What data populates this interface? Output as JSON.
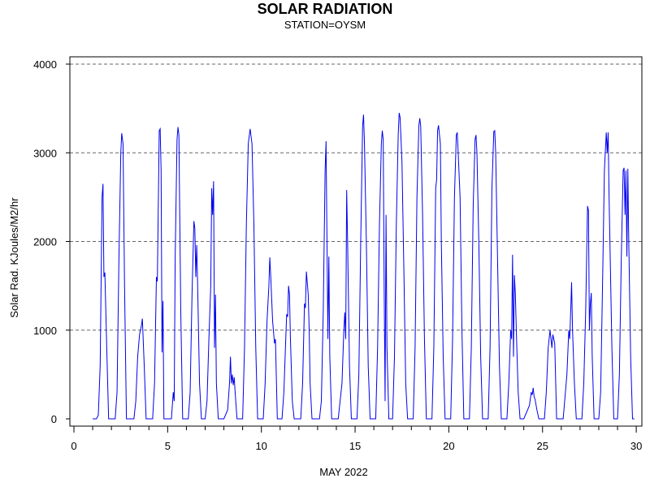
{
  "chart_data": {
    "type": "line",
    "title": "SOLAR RADIATION",
    "subtitle": "STATION=OYSM",
    "xlabel": "MAY 2022",
    "ylabel": "Solar Rad. KJoules/M2/hr",
    "xlim": [
      0,
      30
    ],
    "ylim": [
      0,
      4000
    ],
    "x_ticks": [
      0,
      5,
      10,
      15,
      20,
      25,
      30
    ],
    "y_ticks": [
      0,
      1000,
      2000,
      3000,
      4000
    ],
    "grid": "horizontal dashed",
    "line_color": "#0000ee",
    "series": [
      {
        "points": [
          [
            1.0,
            0
          ],
          [
            1.2,
            0
          ],
          [
            1.3,
            40
          ],
          [
            1.4,
            600
          ],
          [
            1.5,
            2500
          ],
          [
            1.55,
            2650
          ],
          [
            1.6,
            1600
          ],
          [
            1.65,
            1650
          ],
          [
            1.75,
            800
          ],
          [
            1.85,
            0
          ],
          [
            2.2,
            0
          ],
          [
            2.3,
            300
          ],
          [
            2.4,
            1800
          ],
          [
            2.5,
            3000
          ],
          [
            2.55,
            3220
          ],
          [
            2.62,
            3100
          ],
          [
            2.7,
            1500
          ],
          [
            2.8,
            0
          ],
          [
            3.2,
            0
          ],
          [
            3.3,
            200
          ],
          [
            3.4,
            700
          ],
          [
            3.5,
            950
          ],
          [
            3.6,
            1050
          ],
          [
            3.65,
            1130
          ],
          [
            3.75,
            600
          ],
          [
            3.85,
            0
          ],
          [
            4.2,
            0
          ],
          [
            4.3,
            400
          ],
          [
            4.4,
            1600
          ],
          [
            4.45,
            1550
          ],
          [
            4.55,
            3250
          ],
          [
            4.6,
            3270
          ],
          [
            4.65,
            2800
          ],
          [
            4.7,
            750
          ],
          [
            4.75,
            1330
          ],
          [
            4.8,
            0
          ],
          [
            5.2,
            0
          ],
          [
            5.3,
            300
          ],
          [
            5.35,
            200
          ],
          [
            5.4,
            1800
          ],
          [
            5.5,
            3150
          ],
          [
            5.55,
            3290
          ],
          [
            5.6,
            3200
          ],
          [
            5.7,
            1200
          ],
          [
            5.8,
            0
          ],
          [
            6.1,
            0
          ],
          [
            6.2,
            300
          ],
          [
            6.3,
            1400
          ],
          [
            6.4,
            2230
          ],
          [
            6.45,
            2150
          ],
          [
            6.5,
            1600
          ],
          [
            6.55,
            1960
          ],
          [
            6.6,
            1500
          ],
          [
            6.7,
            400
          ],
          [
            6.8,
            0
          ],
          [
            7.0,
            0
          ],
          [
            7.1,
            200
          ],
          [
            7.2,
            900
          ],
          [
            7.3,
            1500
          ],
          [
            7.35,
            2600
          ],
          [
            7.4,
            2300
          ],
          [
            7.45,
            2680
          ],
          [
            7.5,
            800
          ],
          [
            7.55,
            1400
          ],
          [
            7.6,
            400
          ],
          [
            7.7,
            0
          ],
          [
            8.0,
            0
          ],
          [
            8.2,
            100
          ],
          [
            8.3,
            400
          ],
          [
            8.35,
            700
          ],
          [
            8.4,
            400
          ],
          [
            8.45,
            500
          ],
          [
            8.5,
            380
          ],
          [
            8.55,
            470
          ],
          [
            8.6,
            300
          ],
          [
            8.7,
            0
          ],
          [
            9.0,
            0
          ],
          [
            9.1,
            800
          ],
          [
            9.2,
            2200
          ],
          [
            9.3,
            3100
          ],
          [
            9.4,
            3270
          ],
          [
            9.5,
            3100
          ],
          [
            9.6,
            2200
          ],
          [
            9.7,
            800
          ],
          [
            9.8,
            0
          ],
          [
            10.1,
            0
          ],
          [
            10.2,
            400
          ],
          [
            10.3,
            1100
          ],
          [
            10.4,
            1500
          ],
          [
            10.45,
            1820
          ],
          [
            10.5,
            1600
          ],
          [
            10.6,
            1100
          ],
          [
            10.7,
            850
          ],
          [
            10.75,
            900
          ],
          [
            10.85,
            0
          ],
          [
            11.1,
            0
          ],
          [
            11.2,
            300
          ],
          [
            11.3,
            900
          ],
          [
            11.35,
            1180
          ],
          [
            11.4,
            1150
          ],
          [
            11.45,
            1500
          ],
          [
            11.5,
            1400
          ],
          [
            11.55,
            900
          ],
          [
            11.65,
            200
          ],
          [
            11.75,
            0
          ],
          [
            12.1,
            0
          ],
          [
            12.2,
            400
          ],
          [
            12.3,
            1300
          ],
          [
            12.35,
            1250
          ],
          [
            12.4,
            1660
          ],
          [
            12.5,
            1400
          ],
          [
            12.55,
            1000
          ],
          [
            12.6,
            400
          ],
          [
            12.7,
            0
          ],
          [
            13.1,
            0
          ],
          [
            13.2,
            200
          ],
          [
            13.3,
            1200
          ],
          [
            13.4,
            2800
          ],
          [
            13.45,
            3130
          ],
          [
            13.5,
            2000
          ],
          [
            13.55,
            900
          ],
          [
            13.6,
            1830
          ],
          [
            13.65,
            700
          ],
          [
            13.75,
            0
          ],
          [
            14.1,
            0
          ],
          [
            14.3,
            400
          ],
          [
            14.4,
            1000
          ],
          [
            14.45,
            1200
          ],
          [
            14.5,
            900
          ],
          [
            14.55,
            2580
          ],
          [
            14.6,
            2000
          ],
          [
            14.7,
            600
          ],
          [
            14.8,
            0
          ],
          [
            15.1,
            0
          ],
          [
            15.2,
            500
          ],
          [
            15.3,
            2000
          ],
          [
            15.4,
            3300
          ],
          [
            15.45,
            3430
          ],
          [
            15.5,
            3100
          ],
          [
            15.6,
            2000
          ],
          [
            15.7,
            600
          ],
          [
            15.8,
            0
          ],
          [
            16.1,
            0
          ],
          [
            16.2,
            800
          ],
          [
            16.3,
            2200
          ],
          [
            16.4,
            3100
          ],
          [
            16.45,
            3250
          ],
          [
            16.5,
            3150
          ],
          [
            16.55,
            1500
          ],
          [
            16.6,
            200
          ],
          [
            16.65,
            2300
          ],
          [
            16.7,
            800
          ],
          [
            16.8,
            0
          ],
          [
            17.0,
            0
          ],
          [
            17.1,
            700
          ],
          [
            17.2,
            2200
          ],
          [
            17.3,
            3200
          ],
          [
            17.35,
            3450
          ],
          [
            17.4,
            3400
          ],
          [
            17.5,
            2900
          ],
          [
            17.6,
            1700
          ],
          [
            17.7,
            400
          ],
          [
            17.8,
            0
          ],
          [
            18.1,
            0
          ],
          [
            18.2,
            800
          ],
          [
            18.3,
            2500
          ],
          [
            18.4,
            3300
          ],
          [
            18.45,
            3390
          ],
          [
            18.5,
            3300
          ],
          [
            18.6,
            2300
          ],
          [
            18.7,
            900
          ],
          [
            18.8,
            0
          ],
          [
            19.1,
            0
          ],
          [
            19.2,
            800
          ],
          [
            19.3,
            2600
          ],
          [
            19.35,
            2700
          ],
          [
            19.4,
            3250
          ],
          [
            19.45,
            3310
          ],
          [
            19.55,
            3100
          ],
          [
            19.6,
            2000
          ],
          [
            19.7,
            700
          ],
          [
            19.8,
            0
          ],
          [
            20.1,
            0
          ],
          [
            20.2,
            900
          ],
          [
            20.3,
            2500
          ],
          [
            20.4,
            3200
          ],
          [
            20.45,
            3230
          ],
          [
            20.5,
            3000
          ],
          [
            20.6,
            2500
          ],
          [
            20.7,
            1000
          ],
          [
            20.8,
            0
          ],
          [
            21.1,
            0
          ],
          [
            21.2,
            800
          ],
          [
            21.3,
            2400
          ],
          [
            21.4,
            3150
          ],
          [
            21.45,
            3200
          ],
          [
            21.5,
            3000
          ],
          [
            21.6,
            2000
          ],
          [
            21.7,
            700
          ],
          [
            21.8,
            0
          ],
          [
            22.1,
            0
          ],
          [
            22.2,
            800
          ],
          [
            22.3,
            2600
          ],
          [
            22.4,
            3240
          ],
          [
            22.45,
            3250
          ],
          [
            22.5,
            3000
          ],
          [
            22.6,
            1800
          ],
          [
            22.7,
            600
          ],
          [
            22.8,
            0
          ],
          [
            23.1,
            0
          ],
          [
            23.2,
            400
          ],
          [
            23.3,
            1000
          ],
          [
            23.35,
            900
          ],
          [
            23.4,
            1850
          ],
          [
            23.45,
            700
          ],
          [
            23.5,
            1620
          ],
          [
            23.55,
            1400
          ],
          [
            23.6,
            1000
          ],
          [
            23.7,
            300
          ],
          [
            23.8,
            0
          ],
          [
            24.0,
            0
          ],
          [
            24.3,
            150
          ],
          [
            24.4,
            300
          ],
          [
            24.45,
            270
          ],
          [
            24.5,
            350
          ],
          [
            24.55,
            250
          ],
          [
            24.6,
            220
          ],
          [
            24.7,
            100
          ],
          [
            24.8,
            0
          ],
          [
            25.1,
            0
          ],
          [
            25.2,
            300
          ],
          [
            25.3,
            800
          ],
          [
            25.4,
            1000
          ],
          [
            25.45,
            900
          ],
          [
            25.5,
            800
          ],
          [
            25.55,
            950
          ],
          [
            25.65,
            850
          ],
          [
            25.75,
            0
          ],
          [
            26.1,
            0
          ],
          [
            26.3,
            500
          ],
          [
            26.4,
            1000
          ],
          [
            26.45,
            900
          ],
          [
            26.5,
            1200
          ],
          [
            26.55,
            1540
          ],
          [
            26.6,
            1000
          ],
          [
            26.7,
            400
          ],
          [
            26.8,
            0
          ],
          [
            27.1,
            0
          ],
          [
            27.2,
            400
          ],
          [
            27.3,
            1200
          ],
          [
            27.4,
            2400
          ],
          [
            27.45,
            2350
          ],
          [
            27.5,
            1000
          ],
          [
            27.55,
            1300
          ],
          [
            27.6,
            1420
          ],
          [
            27.65,
            700
          ],
          [
            27.75,
            0
          ],
          [
            28.0,
            0
          ],
          [
            28.1,
            300
          ],
          [
            28.2,
            1500
          ],
          [
            28.3,
            2800
          ],
          [
            28.4,
            3230
          ],
          [
            28.45,
            3000
          ],
          [
            28.5,
            3230
          ],
          [
            28.55,
            2500
          ],
          [
            28.7,
            800
          ],
          [
            28.8,
            0
          ],
          [
            29.0,
            0
          ],
          [
            29.1,
            500
          ],
          [
            29.2,
            1800
          ],
          [
            29.3,
            2800
          ],
          [
            29.35,
            2830
          ],
          [
            29.4,
            2300
          ],
          [
            29.45,
            2800
          ],
          [
            29.5,
            1830
          ],
          [
            29.55,
            2820
          ],
          [
            29.6,
            2000
          ],
          [
            29.7,
            700
          ],
          [
            29.8,
            0
          ],
          [
            29.9,
            0
          ]
        ]
      }
    ]
  }
}
